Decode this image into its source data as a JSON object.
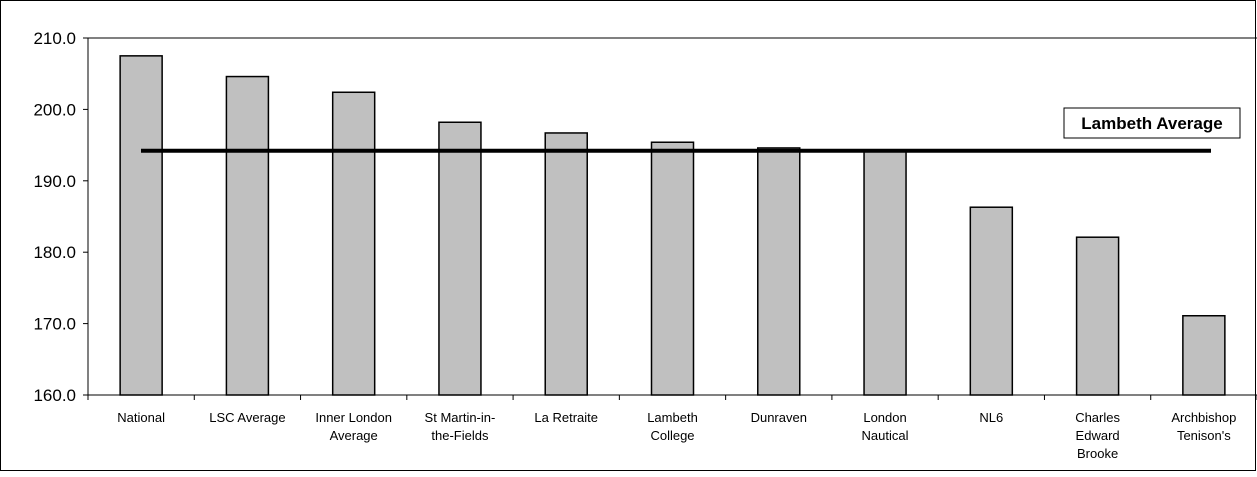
{
  "chart_data": {
    "type": "bar",
    "categories": [
      "National",
      "LSC Average",
      "Inner London Average",
      "St Martin-in-the-Fields",
      "La Retraite",
      "Lambeth College",
      "Dunraven",
      "London Nautical",
      "NL6",
      "Charles Edward Brooke",
      "Archbishop Tenison's"
    ],
    "category_lines": [
      [
        "National"
      ],
      [
        "LSC Average"
      ],
      [
        "Inner London",
        "Average"
      ],
      [
        "St Martin-in-",
        "the-Fields"
      ],
      [
        "La Retraite"
      ],
      [
        "Lambeth",
        "College"
      ],
      [
        "Dunraven"
      ],
      [
        "London",
        "Nautical"
      ],
      [
        "NL6"
      ],
      [
        "Charles",
        "Edward",
        "Brooke"
      ],
      [
        "Archbishop",
        "Tenison's"
      ]
    ],
    "values": [
      207.5,
      204.6,
      202.4,
      198.2,
      196.7,
      195.4,
      194.6,
      194.3,
      186.3,
      182.1,
      171.1
    ],
    "ylim": [
      160,
      210
    ],
    "yticks": [
      "160.0",
      "170.0",
      "180.0",
      "190.0",
      "200.0",
      "210.0"
    ],
    "ytick_values": [
      160,
      170,
      180,
      190,
      200,
      210
    ],
    "title": "",
    "xlabel": "",
    "ylabel": "",
    "grid": false,
    "bar_color": "#c0c0c0",
    "reference_line": {
      "label": "Lambeth Average",
      "value": 194.2,
      "color": "#000000"
    }
  }
}
